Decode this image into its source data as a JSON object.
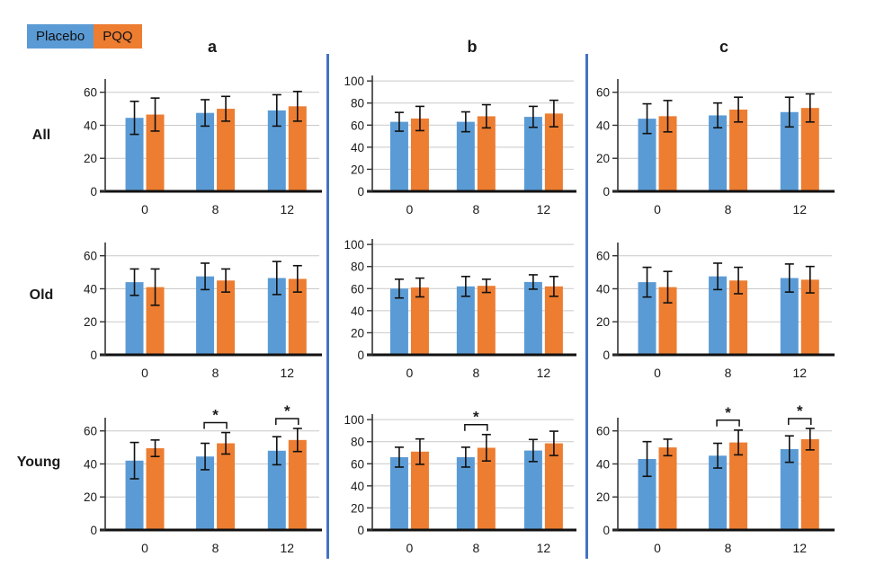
{
  "legend": {
    "items": [
      {
        "label": "Placebo",
        "color": "#5B9BD5"
      },
      {
        "label": "PQQ",
        "color": "#ED7D31"
      }
    ]
  },
  "columns": [
    "a",
    "b",
    "c"
  ],
  "rows": [
    "All",
    "Old",
    "Young"
  ],
  "colors": {
    "placebo": "#5B9BD5",
    "pqq": "#ED7D31",
    "divider": "#4472C4",
    "grid": "#C9C9C9",
    "axis": "#333333",
    "baseline": "#111111",
    "text": "#1A1A1A"
  },
  "chart_data": [
    {
      "type": "bar",
      "panel": "a",
      "group": "All",
      "categories": [
        "0",
        "8",
        "12"
      ],
      "ticks": [
        0,
        20,
        40,
        60
      ],
      "ylim": [
        0,
        68
      ],
      "series": [
        {
          "name": "Placebo",
          "color": "#5B9BD5",
          "values": [
            44.5,
            47.5,
            49
          ],
          "errors": [
            10,
            8,
            9.5
          ]
        },
        {
          "name": "PQQ",
          "color": "#ED7D31",
          "values": [
            46.5,
            50,
            51.5
          ],
          "errors": [
            10,
            7.5,
            9
          ]
        }
      ],
      "significance": []
    },
    {
      "type": "bar",
      "panel": "b",
      "group": "All",
      "categories": [
        "0",
        "8",
        "12"
      ],
      "ticks": [
        0,
        20,
        40,
        60,
        80,
        100
      ],
      "ylim": [
        0,
        105
      ],
      "series": [
        {
          "name": "Placebo",
          "color": "#5B9BD5",
          "values": [
            63,
            63,
            67.5
          ],
          "errors": [
            8.5,
            9,
            9.5
          ]
        },
        {
          "name": "PQQ",
          "color": "#ED7D31",
          "values": [
            66,
            68,
            70.5
          ],
          "errors": [
            11,
            10.5,
            12
          ]
        }
      ],
      "significance": []
    },
    {
      "type": "bar",
      "panel": "c",
      "group": "All",
      "categories": [
        "0",
        "8",
        "12"
      ],
      "ticks": [
        0,
        20,
        40,
        60
      ],
      "ylim": [
        0,
        68
      ],
      "series": [
        {
          "name": "Placebo",
          "color": "#5B9BD5",
          "values": [
            44,
            46,
            48
          ],
          "errors": [
            9,
            7.5,
            9
          ]
        },
        {
          "name": "PQQ",
          "color": "#ED7D31",
          "values": [
            45.5,
            49.5,
            50.5
          ],
          "errors": [
            9.5,
            7.5,
            8.5
          ]
        }
      ],
      "significance": []
    },
    {
      "type": "bar",
      "panel": "a",
      "group": "Old",
      "categories": [
        "0",
        "8",
        "12"
      ],
      "ticks": [
        0,
        20,
        40,
        60
      ],
      "ylim": [
        0,
        68
      ],
      "series": [
        {
          "name": "Placebo",
          "color": "#5B9BD5",
          "values": [
            44,
            47.5,
            46.5
          ],
          "errors": [
            8,
            8,
            10
          ]
        },
        {
          "name": "PQQ",
          "color": "#ED7D31",
          "values": [
            41,
            45,
            46
          ],
          "errors": [
            11,
            7,
            8
          ]
        }
      ],
      "significance": []
    },
    {
      "type": "bar",
      "panel": "b",
      "group": "Old",
      "categories": [
        "0",
        "8",
        "12"
      ],
      "ticks": [
        0,
        20,
        40,
        60,
        80,
        100
      ],
      "ylim": [
        0,
        105
      ],
      "series": [
        {
          "name": "Placebo",
          "color": "#5B9BD5",
          "values": [
            60,
            62,
            66
          ],
          "errors": [
            8.5,
            9,
            6.5
          ]
        },
        {
          "name": "PQQ",
          "color": "#ED7D31",
          "values": [
            61,
            62.5,
            62
          ],
          "errors": [
            8.5,
            6,
            9
          ]
        }
      ],
      "significance": []
    },
    {
      "type": "bar",
      "panel": "c",
      "group": "Old",
      "categories": [
        "0",
        "8",
        "12"
      ],
      "ticks": [
        0,
        20,
        40,
        60
      ],
      "ylim": [
        0,
        68
      ],
      "series": [
        {
          "name": "Placebo",
          "color": "#5B9BD5",
          "values": [
            44,
            47.5,
            46.5
          ],
          "errors": [
            9,
            8,
            8.5
          ]
        },
        {
          "name": "PQQ",
          "color": "#ED7D31",
          "values": [
            41,
            45,
            45.5
          ],
          "errors": [
            9.5,
            8,
            8
          ]
        }
      ],
      "significance": []
    },
    {
      "type": "bar",
      "panel": "a",
      "group": "Young",
      "categories": [
        "0",
        "8",
        "12"
      ],
      "ticks": [
        0,
        20,
        40,
        60
      ],
      "ylim": [
        0,
        68
      ],
      "series": [
        {
          "name": "Placebo",
          "color": "#5B9BD5",
          "values": [
            42,
            44.5,
            48
          ],
          "errors": [
            11,
            8,
            8.5
          ]
        },
        {
          "name": "PQQ",
          "color": "#ED7D31",
          "values": [
            49.5,
            52.5,
            54.5
          ],
          "errors": [
            5,
            6.5,
            7
          ]
        }
      ],
      "significance": [
        {
          "category_index": 1,
          "label": "*"
        },
        {
          "category_index": 2,
          "label": "*"
        }
      ]
    },
    {
      "type": "bar",
      "panel": "b",
      "group": "Young",
      "categories": [
        "0",
        "8",
        "12"
      ],
      "ticks": [
        0,
        20,
        40,
        60,
        80,
        100
      ],
      "ylim": [
        0,
        105
      ],
      "series": [
        {
          "name": "Placebo",
          "color": "#5B9BD5",
          "values": [
            66,
            66,
            72
          ],
          "errors": [
            9,
            9,
            10
          ]
        },
        {
          "name": "PQQ",
          "color": "#ED7D31",
          "values": [
            71,
            74.5,
            78.5
          ],
          "errors": [
            11.5,
            12,
            11
          ]
        }
      ],
      "significance": [
        {
          "category_index": 1,
          "label": "*"
        }
      ]
    },
    {
      "type": "bar",
      "panel": "c",
      "group": "Young",
      "categories": [
        "0",
        "8",
        "12"
      ],
      "ticks": [
        0,
        20,
        40,
        60
      ],
      "ylim": [
        0,
        68
      ],
      "series": [
        {
          "name": "Placebo",
          "color": "#5B9BD5",
          "values": [
            43,
            45,
            49
          ],
          "errors": [
            10.5,
            7.5,
            8
          ]
        },
        {
          "name": "PQQ",
          "color": "#ED7D31",
          "values": [
            50,
            53,
            55
          ],
          "errors": [
            5,
            7.5,
            6.5
          ]
        }
      ],
      "significance": [
        {
          "category_index": 1,
          "label": "*"
        },
        {
          "category_index": 2,
          "label": "*"
        }
      ]
    }
  ]
}
